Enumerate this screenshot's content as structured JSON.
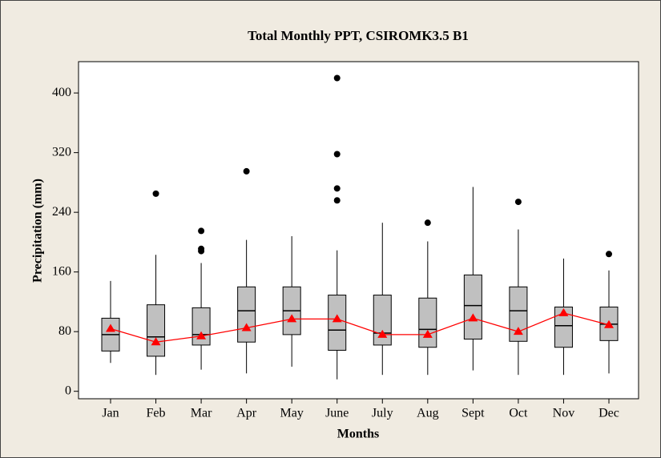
{
  "chart_data": {
    "type": "box",
    "title": "Total Monthly PPT, CSIROMK3.5 B1",
    "x_label": "Months",
    "y_label": "Precipitation (mm)",
    "categories": [
      "Jan",
      "Feb",
      "Mar",
      "Apr",
      "May",
      "June",
      "July",
      "Aug",
      "Sept",
      "Oct",
      "Nov",
      "Dec"
    ],
    "boxes": [
      {
        "low": 38,
        "q1": 54,
        "median": 76,
        "q3": 98,
        "high": 148,
        "outliers": []
      },
      {
        "low": 22,
        "q1": 47,
        "median": 73,
        "q3": 116,
        "high": 183,
        "outliers": [
          265
        ]
      },
      {
        "low": 29,
        "q1": 62,
        "median": 76,
        "q3": 112,
        "high": 172,
        "outliers": [
          215,
          191,
          188
        ]
      },
      {
        "low": 24,
        "q1": 66,
        "median": 108,
        "q3": 140,
        "high": 203,
        "outliers": [
          295
        ]
      },
      {
        "low": 33,
        "q1": 76,
        "median": 108,
        "q3": 140,
        "high": 208,
        "outliers": []
      },
      {
        "low": 16,
        "q1": 55,
        "median": 82,
        "q3": 129,
        "high": 189,
        "outliers": [
          420,
          318,
          272,
          256
        ]
      },
      {
        "low": 22,
        "q1": 62,
        "median": 78,
        "q3": 129,
        "high": 226,
        "outliers": []
      },
      {
        "low": 22,
        "q1": 59,
        "median": 83,
        "q3": 125,
        "high": 201,
        "outliers": [
          226
        ]
      },
      {
        "low": 28,
        "q1": 70,
        "median": 115,
        "q3": 156,
        "high": 274,
        "outliers": []
      },
      {
        "low": 22,
        "q1": 67,
        "median": 108,
        "q3": 140,
        "high": 217,
        "outliers": [
          254
        ]
      },
      {
        "low": 22,
        "q1": 59,
        "median": 88,
        "q3": 113,
        "high": 178,
        "outliers": []
      },
      {
        "low": 24,
        "q1": 68,
        "median": 90,
        "q3": 113,
        "high": 162,
        "outliers": [
          184
        ]
      }
    ],
    "means": [
      84,
      66,
      74,
      85,
      97,
      97,
      76,
      76,
      98,
      80,
      105,
      89
    ],
    "box_color": "#c0c0c0",
    "mean_color": "#ff0000",
    "ylim": [
      -10,
      442
    ],
    "yticks": [
      0,
      80,
      160,
      240,
      320,
      400
    ]
  }
}
